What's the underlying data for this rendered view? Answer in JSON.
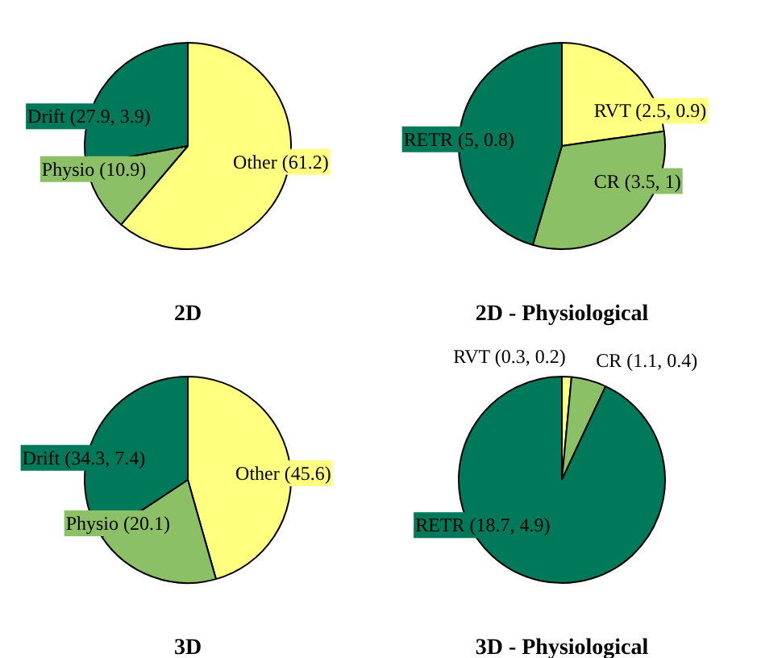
{
  "chart_data": [
    {
      "type": "pie",
      "title": "2D",
      "categories": [
        "Other (61.2)",
        "Physio (10.9)",
        "Drift (27.9, 3.9)"
      ],
      "values": [
        61.2,
        10.9,
        27.9
      ],
      "colors": [
        "#ffff80",
        "#8cc066",
        "#00785a"
      ]
    },
    {
      "type": "pie",
      "title": "2D - Physiological",
      "categories": [
        "RVT (2.5, 0.9)",
        "CR (3.5, 1)",
        "RETR (5, 0.8)"
      ],
      "values": [
        2.5,
        3.5,
        5
      ],
      "colors": [
        "#ffff80",
        "#8cc066",
        "#00785a"
      ]
    },
    {
      "type": "pie",
      "title": "3D",
      "categories": [
        "Other (45.6)",
        "Physio (20.1)",
        "Drift (34.3, 7.4)"
      ],
      "values": [
        45.6,
        20.1,
        34.3
      ],
      "colors": [
        "#ffff80",
        "#8cc066",
        "#00785a"
      ]
    },
    {
      "type": "pie",
      "title": "3D - Physiological",
      "categories": [
        "RVT (0.3, 0.2)",
        "CR (1.1, 0.4)",
        "RETR (18.7, 4.9)"
      ],
      "values": [
        0.3,
        1.1,
        18.7
      ],
      "colors": [
        "#ffff80",
        "#8cc066",
        "#00785a"
      ]
    }
  ]
}
